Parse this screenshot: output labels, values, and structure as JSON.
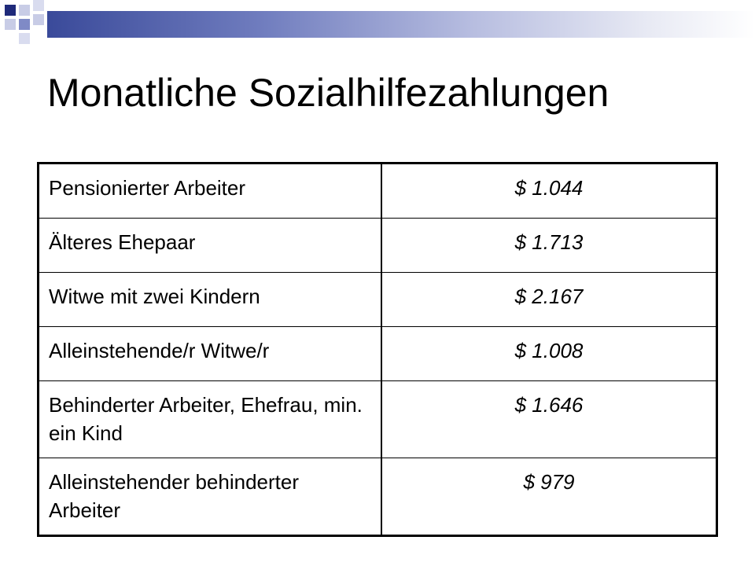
{
  "title": "Monatliche Sozialhilfezahlungen",
  "theme": {
    "accent_dark": "#1f2a7a",
    "accent_mid": "#7f8ac6",
    "accent_light": "#c8cce6"
  },
  "table": {
    "rows": [
      {
        "label": "Pensionierter Arbeiter",
        "value": "$ 1.044"
      },
      {
        "label": "Älteres Ehepaar",
        "value": "$ 1.713"
      },
      {
        "label": "Witwe mit zwei Kindern",
        "value": "$ 2.167"
      },
      {
        "label": "Alleinstehende/r Witwe/r",
        "value": "$ 1.008"
      },
      {
        "label": "Behinderter Arbeiter, Ehefrau, min. ein Kind",
        "value": "$ 1.646"
      },
      {
        "label": "Alleinstehender behinderter Arbeiter",
        "value": "$ 979"
      }
    ]
  }
}
